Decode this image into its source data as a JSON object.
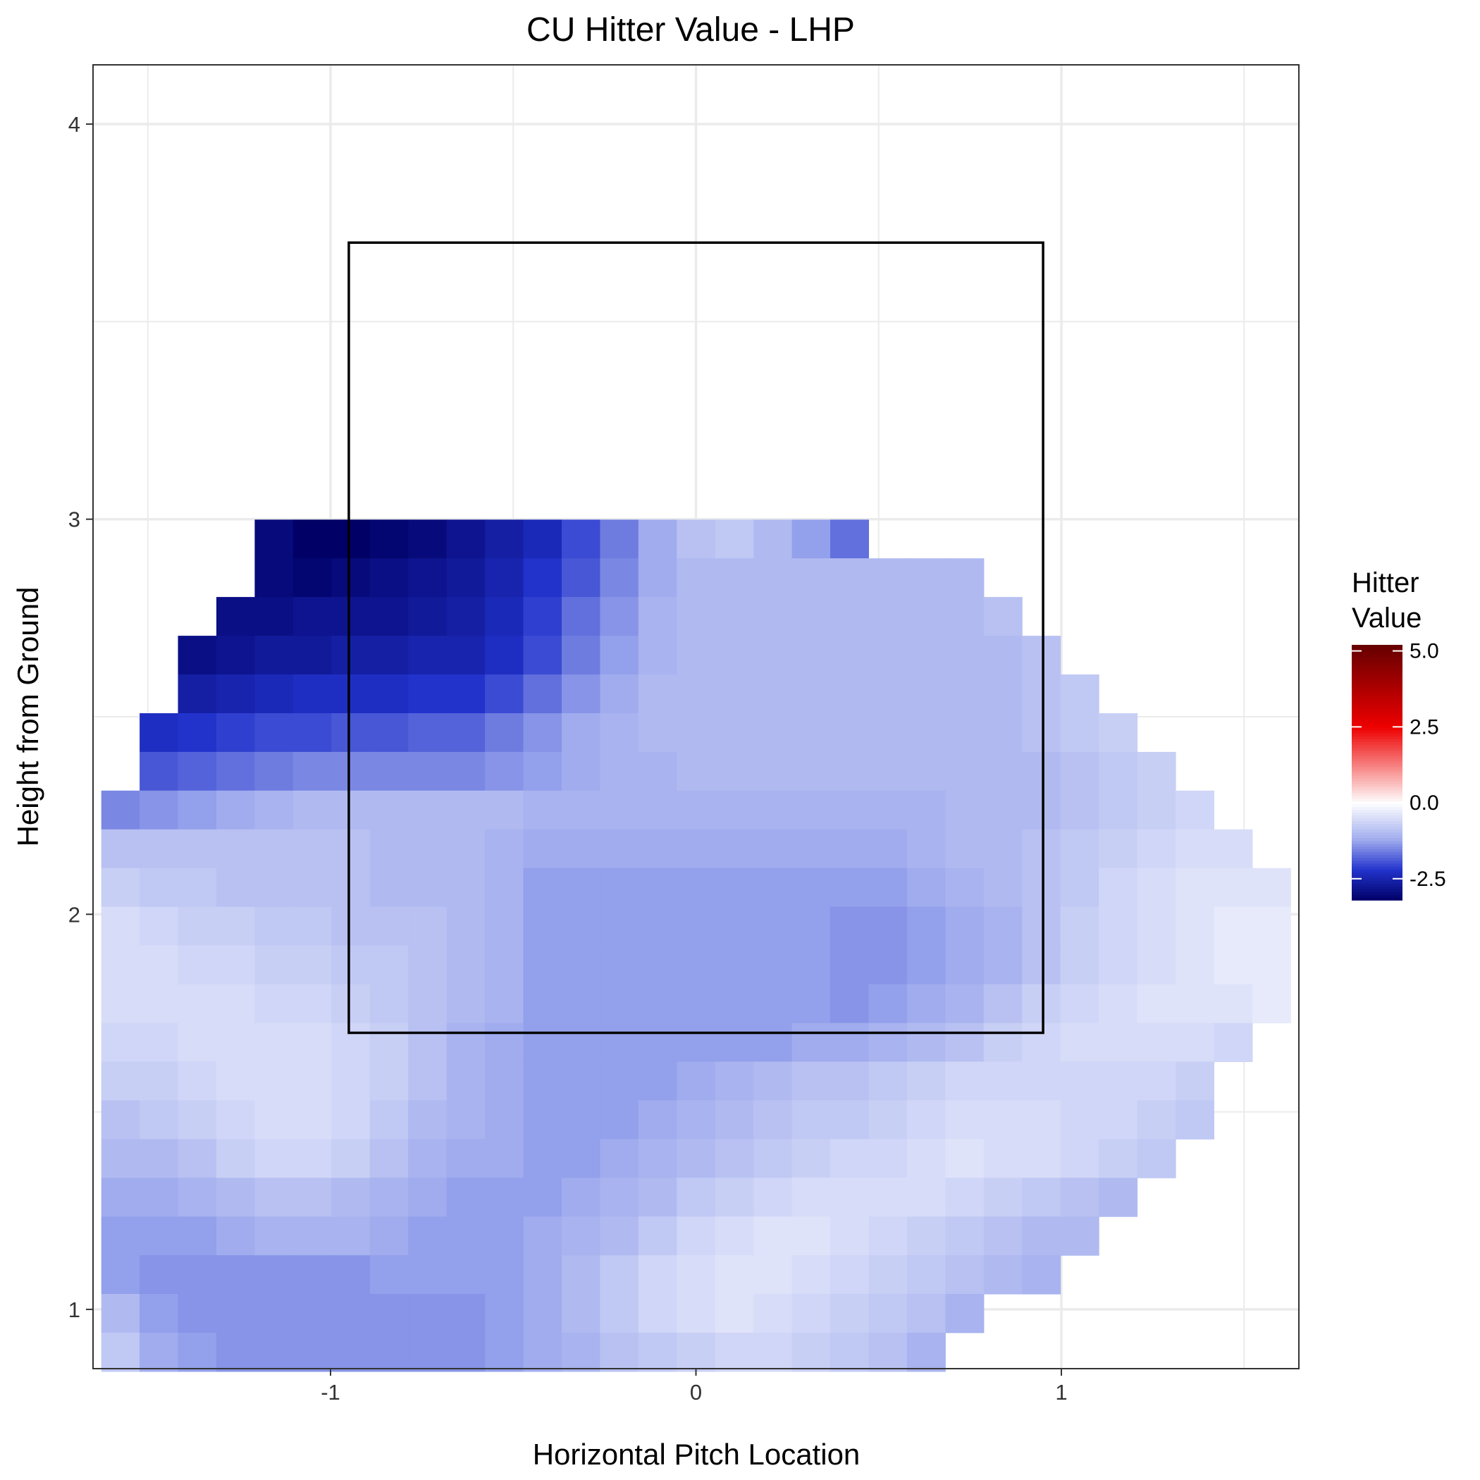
{
  "chart_data": {
    "type": "heatmap",
    "title": "CU Hitter Value - LHP",
    "xlabel": "Horizontal Pitch Location",
    "ylabel": "Height from Ground",
    "xlim": [
      -1.65,
      1.65
    ],
    "ylim": [
      0.85,
      4.15
    ],
    "x_ticks": [
      {
        "value": -1,
        "label": "-1"
      },
      {
        "value": 0,
        "label": "0"
      },
      {
        "value": 1,
        "label": "1"
      }
    ],
    "y_ticks": [
      {
        "value": 1,
        "label": "1"
      },
      {
        "value": 2,
        "label": "2"
      },
      {
        "value": 3,
        "label": "3"
      },
      {
        "value": 4,
        "label": "4"
      }
    ],
    "grid": true,
    "strike_zone": {
      "x": [
        -0.95,
        0.95
      ],
      "y": [
        1.7,
        3.7
      ]
    },
    "legend": {
      "title_lines": [
        "Hitter",
        "Value"
      ],
      "position": "right",
      "min": -3.2,
      "max": 5.2,
      "ticks": [
        {
          "value": 5.0,
          "label": "5.0"
        },
        {
          "value": 2.5,
          "label": "2.5"
        },
        {
          "value": 0.0,
          "label": "0.0"
        },
        {
          "value": -2.5,
          "label": "-2.5"
        }
      ],
      "colors": {
        "low": "#000066",
        "mid_low": "#2233cc",
        "mid": "#ffffff",
        "mid_high": "#ee0000",
        "high": "#660000"
      }
    },
    "grid_spec": {
      "x0": -1.575,
      "dx": 0.105,
      "y0": 2.95,
      "dy": -0.098
    },
    "values": [
      [
        null,
        null,
        null,
        null,
        -3.0,
        -3.2,
        -3.2,
        -3.1,
        -3.0,
        -2.8,
        -2.6,
        -2.4,
        -2.0,
        -1.6,
        -1.2,
        -0.9,
        -0.8,
        -1.0,
        -1.3,
        -1.7,
        null,
        null,
        null,
        null,
        null,
        null,
        null,
        null,
        null,
        null,
        null
      ],
      [
        null,
        null,
        null,
        null,
        -3.0,
        -3.1,
        -3.0,
        -2.9,
        -2.8,
        -2.7,
        -2.5,
        -2.2,
        -1.9,
        -1.5,
        -1.2,
        -1.0,
        -1.0,
        -1.0,
        -1.0,
        -1.0,
        -1.0,
        -1.0,
        -1.0,
        null,
        null,
        null,
        null,
        null,
        null,
        null,
        null
      ],
      [
        null,
        null,
        null,
        -2.9,
        -2.9,
        -2.8,
        -2.8,
        -2.8,
        -2.7,
        -2.6,
        -2.4,
        -2.1,
        -1.7,
        -1.4,
        -1.1,
        -1.0,
        -1.0,
        -1.0,
        -1.0,
        -1.0,
        -1.0,
        -1.0,
        -1.0,
        -0.9,
        null,
        null,
        null,
        null,
        null,
        null,
        null
      ],
      [
        null,
        null,
        -2.9,
        -2.8,
        -2.7,
        -2.7,
        -2.6,
        -2.6,
        -2.5,
        -2.5,
        -2.3,
        -2.0,
        -1.6,
        -1.3,
        -1.1,
        -1.0,
        -1.0,
        -1.0,
        -1.0,
        -1.0,
        -1.0,
        -1.0,
        -1.0,
        -1.0,
        -0.9,
        null,
        null,
        null,
        null,
        null,
        null
      ],
      [
        null,
        null,
        -2.6,
        -2.5,
        -2.4,
        -2.3,
        -2.3,
        -2.3,
        -2.2,
        -2.2,
        -2.0,
        -1.7,
        -1.4,
        -1.2,
        -1.0,
        -1.0,
        -1.0,
        -1.0,
        -1.0,
        -1.0,
        -1.0,
        -1.0,
        -1.0,
        -1.0,
        -0.9,
        -0.8,
        null,
        null,
        null,
        null,
        null
      ],
      [
        null,
        -2.3,
        -2.2,
        -2.1,
        -2.0,
        -2.0,
        -1.9,
        -1.9,
        -1.8,
        -1.8,
        -1.6,
        -1.4,
        -1.2,
        -1.1,
        -1.0,
        -1.0,
        -1.0,
        -1.0,
        -1.0,
        -1.0,
        -1.0,
        -1.0,
        -1.0,
        -1.0,
        -0.9,
        -0.8,
        -0.7,
        null,
        null,
        null,
        null
      ],
      [
        null,
        -1.9,
        -1.8,
        -1.7,
        -1.6,
        -1.5,
        -1.5,
        -1.5,
        -1.5,
        -1.5,
        -1.4,
        -1.3,
        -1.2,
        -1.1,
        -1.1,
        -1.0,
        -1.0,
        -1.0,
        -1.0,
        -1.0,
        -1.0,
        -1.0,
        -1.0,
        -1.0,
        -1.0,
        -0.9,
        -0.8,
        -0.7,
        null,
        null,
        null
      ],
      [
        -1.5,
        -1.4,
        -1.3,
        -1.2,
        -1.1,
        -1.0,
        -1.0,
        -1.0,
        -1.0,
        -1.0,
        -1.0,
        -1.1,
        -1.1,
        -1.1,
        -1.1,
        -1.1,
        -1.1,
        -1.1,
        -1.1,
        -1.1,
        -1.1,
        -1.1,
        -1.0,
        -1.0,
        -1.0,
        -0.9,
        -0.8,
        -0.7,
        -0.6,
        null,
        null
      ],
      [
        -0.9,
        -0.9,
        -0.9,
        -0.9,
        -0.9,
        -0.9,
        -0.9,
        -1.0,
        -1.0,
        -1.0,
        -1.1,
        -1.2,
        -1.2,
        -1.2,
        -1.2,
        -1.2,
        -1.2,
        -1.2,
        -1.2,
        -1.2,
        -1.2,
        -1.1,
        -1.0,
        -1.0,
        -0.9,
        -0.8,
        -0.7,
        -0.6,
        -0.5,
        -0.5,
        null
      ],
      [
        -0.7,
        -0.8,
        -0.8,
        -0.9,
        -0.9,
        -0.9,
        -0.9,
        -1.0,
        -1.0,
        -1.0,
        -1.1,
        -1.3,
        -1.3,
        -1.3,
        -1.3,
        -1.3,
        -1.3,
        -1.3,
        -1.3,
        -1.3,
        -1.3,
        -1.2,
        -1.1,
        -1.0,
        -0.9,
        -0.8,
        -0.6,
        -0.5,
        -0.4,
        -0.4,
        -0.4
      ],
      [
        -0.5,
        -0.6,
        -0.7,
        -0.7,
        -0.8,
        -0.8,
        -0.9,
        -0.9,
        -0.9,
        -1.0,
        -1.1,
        -1.3,
        -1.3,
        -1.3,
        -1.3,
        -1.3,
        -1.3,
        -1.3,
        -1.3,
        -1.4,
        -1.4,
        -1.3,
        -1.2,
        -1.1,
        -0.9,
        -0.7,
        -0.6,
        -0.5,
        -0.4,
        -0.3,
        -0.3
      ],
      [
        -0.5,
        -0.5,
        -0.6,
        -0.6,
        -0.7,
        -0.7,
        -0.8,
        -0.8,
        -0.9,
        -1.0,
        -1.1,
        -1.3,
        -1.3,
        -1.3,
        -1.3,
        -1.3,
        -1.3,
        -1.3,
        -1.3,
        -1.4,
        -1.4,
        -1.3,
        -1.2,
        -1.1,
        -0.9,
        -0.7,
        -0.6,
        -0.5,
        -0.4,
        -0.3,
        -0.3
      ],
      [
        -0.5,
        -0.5,
        -0.5,
        -0.5,
        -0.6,
        -0.6,
        -0.7,
        -0.8,
        -0.9,
        -1.0,
        -1.1,
        -1.3,
        -1.3,
        -1.3,
        -1.3,
        -1.3,
        -1.3,
        -1.3,
        -1.3,
        -1.4,
        -1.3,
        -1.2,
        -1.1,
        -0.9,
        -0.7,
        -0.6,
        -0.5,
        -0.4,
        -0.4,
        -0.4,
        -0.3
      ],
      [
        -0.6,
        -0.6,
        -0.5,
        -0.5,
        -0.5,
        -0.5,
        -0.6,
        -0.7,
        -0.9,
        -1.1,
        -1.2,
        -1.3,
        -1.3,
        -1.3,
        -1.3,
        -1.3,
        -1.3,
        -1.3,
        -1.2,
        -1.2,
        -1.1,
        -1.0,
        -0.9,
        -0.7,
        -0.6,
        -0.5,
        -0.5,
        -0.5,
        -0.5,
        -0.6,
        null
      ],
      [
        -0.7,
        -0.7,
        -0.6,
        -0.5,
        -0.5,
        -0.5,
        -0.6,
        -0.7,
        -0.9,
        -1.1,
        -1.2,
        -1.3,
        -1.3,
        -1.3,
        -1.3,
        -1.2,
        -1.1,
        -1.0,
        -0.9,
        -0.9,
        -0.8,
        -0.7,
        -0.6,
        -0.6,
        -0.6,
        -0.6,
        -0.6,
        -0.6,
        -0.7,
        null,
        null
      ],
      [
        -0.9,
        -0.8,
        -0.7,
        -0.6,
        -0.5,
        -0.5,
        -0.6,
        -0.8,
        -1.0,
        -1.1,
        -1.2,
        -1.3,
        -1.3,
        -1.3,
        -1.2,
        -1.1,
        -1.0,
        -0.9,
        -0.8,
        -0.8,
        -0.7,
        -0.6,
        -0.5,
        -0.5,
        -0.5,
        -0.6,
        -0.6,
        -0.7,
        -0.8,
        null,
        null
      ],
      [
        -1.0,
        -1.0,
        -0.9,
        -0.7,
        -0.6,
        -0.6,
        -0.7,
        -0.9,
        -1.1,
        -1.2,
        -1.2,
        -1.3,
        -1.3,
        -1.2,
        -1.1,
        -1.0,
        -0.9,
        -0.8,
        -0.7,
        -0.6,
        -0.6,
        -0.5,
        -0.4,
        -0.5,
        -0.5,
        -0.6,
        -0.7,
        -0.8,
        null,
        null,
        null
      ],
      [
        -1.2,
        -1.2,
        -1.1,
        -1.0,
        -0.9,
        -0.9,
        -1.0,
        -1.1,
        -1.2,
        -1.3,
        -1.3,
        -1.3,
        -1.2,
        -1.1,
        -1.0,
        -0.8,
        -0.7,
        -0.6,
        -0.5,
        -0.5,
        -0.5,
        -0.5,
        -0.6,
        -0.7,
        -0.8,
        -0.9,
        -1.0,
        null,
        null,
        null,
        null
      ],
      [
        -1.3,
        -1.3,
        -1.3,
        -1.2,
        -1.1,
        -1.1,
        -1.1,
        -1.2,
        -1.3,
        -1.3,
        -1.3,
        -1.2,
        -1.1,
        -1.0,
        -0.8,
        -0.6,
        -0.5,
        -0.4,
        -0.4,
        -0.5,
        -0.6,
        -0.7,
        -0.8,
        -0.9,
        -1.0,
        -1.0,
        null,
        null,
        null,
        null,
        null
      ],
      [
        -1.3,
        -1.4,
        -1.4,
        -1.4,
        -1.4,
        -1.4,
        -1.4,
        -1.3,
        -1.3,
        -1.3,
        -1.3,
        -1.2,
        -1.0,
        -0.8,
        -0.6,
        -0.5,
        -0.4,
        -0.4,
        -0.5,
        -0.6,
        -0.7,
        -0.8,
        -0.9,
        -1.0,
        -1.1,
        null,
        null,
        null,
        null,
        null,
        null
      ],
      [
        -1.0,
        -1.3,
        -1.4,
        -1.4,
        -1.4,
        -1.4,
        -1.4,
        -1.4,
        -1.4,
        -1.4,
        -1.3,
        -1.2,
        -1.0,
        -0.8,
        -0.6,
        -0.5,
        -0.4,
        -0.5,
        -0.6,
        -0.7,
        -0.8,
        -0.9,
        -1.1,
        null,
        null,
        null,
        null,
        null,
        null,
        null,
        null
      ],
      [
        -0.8,
        -1.2,
        -1.3,
        -1.4,
        -1.4,
        -1.4,
        -1.4,
        -1.4,
        -1.4,
        -1.4,
        -1.3,
        -1.2,
        -1.1,
        -0.9,
        -0.8,
        -0.7,
        -0.6,
        -0.6,
        -0.7,
        -0.8,
        -0.9,
        -1.1,
        null,
        null,
        null,
        null,
        null,
        null,
        null,
        null,
        null
      ]
    ]
  }
}
